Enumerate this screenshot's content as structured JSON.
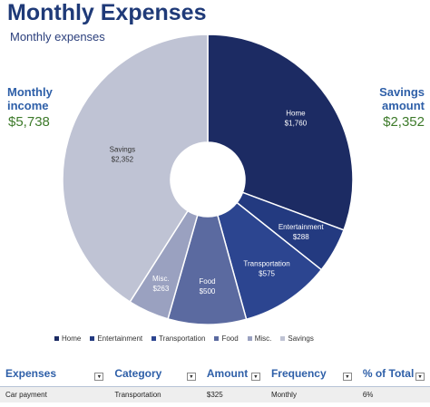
{
  "header": {
    "title": "Monthly Expenses",
    "subtitle": "Monthly expenses"
  },
  "summary": {
    "income_label": "Monthly income",
    "income_value": "$5,738",
    "savings_label": "Savings amount",
    "savings_value": "$2,352"
  },
  "chart_data": {
    "type": "pie",
    "categories": [
      "Home",
      "Entertainment",
      "Transportation",
      "Food",
      "Misc.",
      "Savings"
    ],
    "values": [
      1760,
      288,
      575,
      500,
      263,
      2352
    ],
    "value_labels": [
      "$1,760",
      "$288",
      "$575",
      "$500",
      "$263",
      "$2,352"
    ],
    "colors": [
      "#1c2b63",
      "#233a80",
      "#2c4590",
      "#5b6aa0",
      "#9aa1c0",
      "#bfc3d4"
    ],
    "donut": true,
    "legend": "bottom"
  },
  "table": {
    "columns": [
      "Expenses",
      "Category",
      "Amount",
      "Frequency",
      "% of Total"
    ],
    "dropdown_glyph": "▾",
    "rows": [
      [
        "Car payment",
        "Transportation",
        "$325",
        "Monthly",
        "6%"
      ]
    ]
  }
}
